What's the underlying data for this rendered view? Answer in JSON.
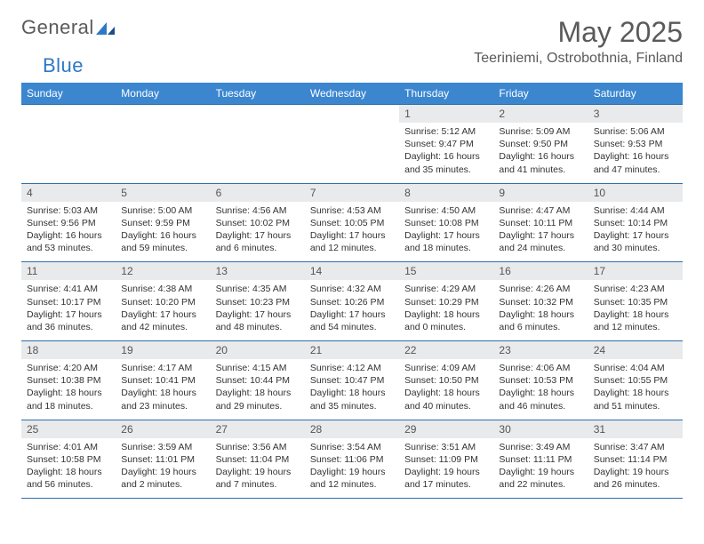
{
  "logo": {
    "part1": "General",
    "part2": "Blue"
  },
  "title": "May 2025",
  "location": "Teeriniemi, Ostrobothnia, Finland",
  "colors": {
    "header_bg": "#3b86cf",
    "header_text": "#ffffff",
    "daynum_bg": "#e9eaeb",
    "rule": "#2f6fab",
    "text": "#333333",
    "logo_gray": "#5a5a5a",
    "logo_blue": "#2f78c4"
  },
  "weekdays": [
    "Sunday",
    "Monday",
    "Tuesday",
    "Wednesday",
    "Thursday",
    "Friday",
    "Saturday"
  ],
  "weeks": [
    [
      {
        "n": "",
        "sr": "",
        "ss": "",
        "dl": ""
      },
      {
        "n": "",
        "sr": "",
        "ss": "",
        "dl": ""
      },
      {
        "n": "",
        "sr": "",
        "ss": "",
        "dl": ""
      },
      {
        "n": "",
        "sr": "",
        "ss": "",
        "dl": ""
      },
      {
        "n": "1",
        "sr": "Sunrise: 5:12 AM",
        "ss": "Sunset: 9:47 PM",
        "dl": "Daylight: 16 hours and 35 minutes."
      },
      {
        "n": "2",
        "sr": "Sunrise: 5:09 AM",
        "ss": "Sunset: 9:50 PM",
        "dl": "Daylight: 16 hours and 41 minutes."
      },
      {
        "n": "3",
        "sr": "Sunrise: 5:06 AM",
        "ss": "Sunset: 9:53 PM",
        "dl": "Daylight: 16 hours and 47 minutes."
      }
    ],
    [
      {
        "n": "4",
        "sr": "Sunrise: 5:03 AM",
        "ss": "Sunset: 9:56 PM",
        "dl": "Daylight: 16 hours and 53 minutes."
      },
      {
        "n": "5",
        "sr": "Sunrise: 5:00 AM",
        "ss": "Sunset: 9:59 PM",
        "dl": "Daylight: 16 hours and 59 minutes."
      },
      {
        "n": "6",
        "sr": "Sunrise: 4:56 AM",
        "ss": "Sunset: 10:02 PM",
        "dl": "Daylight: 17 hours and 6 minutes."
      },
      {
        "n": "7",
        "sr": "Sunrise: 4:53 AM",
        "ss": "Sunset: 10:05 PM",
        "dl": "Daylight: 17 hours and 12 minutes."
      },
      {
        "n": "8",
        "sr": "Sunrise: 4:50 AM",
        "ss": "Sunset: 10:08 PM",
        "dl": "Daylight: 17 hours and 18 minutes."
      },
      {
        "n": "9",
        "sr": "Sunrise: 4:47 AM",
        "ss": "Sunset: 10:11 PM",
        "dl": "Daylight: 17 hours and 24 minutes."
      },
      {
        "n": "10",
        "sr": "Sunrise: 4:44 AM",
        "ss": "Sunset: 10:14 PM",
        "dl": "Daylight: 17 hours and 30 minutes."
      }
    ],
    [
      {
        "n": "11",
        "sr": "Sunrise: 4:41 AM",
        "ss": "Sunset: 10:17 PM",
        "dl": "Daylight: 17 hours and 36 minutes."
      },
      {
        "n": "12",
        "sr": "Sunrise: 4:38 AM",
        "ss": "Sunset: 10:20 PM",
        "dl": "Daylight: 17 hours and 42 minutes."
      },
      {
        "n": "13",
        "sr": "Sunrise: 4:35 AM",
        "ss": "Sunset: 10:23 PM",
        "dl": "Daylight: 17 hours and 48 minutes."
      },
      {
        "n": "14",
        "sr": "Sunrise: 4:32 AM",
        "ss": "Sunset: 10:26 PM",
        "dl": "Daylight: 17 hours and 54 minutes."
      },
      {
        "n": "15",
        "sr": "Sunrise: 4:29 AM",
        "ss": "Sunset: 10:29 PM",
        "dl": "Daylight: 18 hours and 0 minutes."
      },
      {
        "n": "16",
        "sr": "Sunrise: 4:26 AM",
        "ss": "Sunset: 10:32 PM",
        "dl": "Daylight: 18 hours and 6 minutes."
      },
      {
        "n": "17",
        "sr": "Sunrise: 4:23 AM",
        "ss": "Sunset: 10:35 PM",
        "dl": "Daylight: 18 hours and 12 minutes."
      }
    ],
    [
      {
        "n": "18",
        "sr": "Sunrise: 4:20 AM",
        "ss": "Sunset: 10:38 PM",
        "dl": "Daylight: 18 hours and 18 minutes."
      },
      {
        "n": "19",
        "sr": "Sunrise: 4:17 AM",
        "ss": "Sunset: 10:41 PM",
        "dl": "Daylight: 18 hours and 23 minutes."
      },
      {
        "n": "20",
        "sr": "Sunrise: 4:15 AM",
        "ss": "Sunset: 10:44 PM",
        "dl": "Daylight: 18 hours and 29 minutes."
      },
      {
        "n": "21",
        "sr": "Sunrise: 4:12 AM",
        "ss": "Sunset: 10:47 PM",
        "dl": "Daylight: 18 hours and 35 minutes."
      },
      {
        "n": "22",
        "sr": "Sunrise: 4:09 AM",
        "ss": "Sunset: 10:50 PM",
        "dl": "Daylight: 18 hours and 40 minutes."
      },
      {
        "n": "23",
        "sr": "Sunrise: 4:06 AM",
        "ss": "Sunset: 10:53 PM",
        "dl": "Daylight: 18 hours and 46 minutes."
      },
      {
        "n": "24",
        "sr": "Sunrise: 4:04 AM",
        "ss": "Sunset: 10:55 PM",
        "dl": "Daylight: 18 hours and 51 minutes."
      }
    ],
    [
      {
        "n": "25",
        "sr": "Sunrise: 4:01 AM",
        "ss": "Sunset: 10:58 PM",
        "dl": "Daylight: 18 hours and 56 minutes."
      },
      {
        "n": "26",
        "sr": "Sunrise: 3:59 AM",
        "ss": "Sunset: 11:01 PM",
        "dl": "Daylight: 19 hours and 2 minutes."
      },
      {
        "n": "27",
        "sr": "Sunrise: 3:56 AM",
        "ss": "Sunset: 11:04 PM",
        "dl": "Daylight: 19 hours and 7 minutes."
      },
      {
        "n": "28",
        "sr": "Sunrise: 3:54 AM",
        "ss": "Sunset: 11:06 PM",
        "dl": "Daylight: 19 hours and 12 minutes."
      },
      {
        "n": "29",
        "sr": "Sunrise: 3:51 AM",
        "ss": "Sunset: 11:09 PM",
        "dl": "Daylight: 19 hours and 17 minutes."
      },
      {
        "n": "30",
        "sr": "Sunrise: 3:49 AM",
        "ss": "Sunset: 11:11 PM",
        "dl": "Daylight: 19 hours and 22 minutes."
      },
      {
        "n": "31",
        "sr": "Sunrise: 3:47 AM",
        "ss": "Sunset: 11:14 PM",
        "dl": "Daylight: 19 hours and 26 minutes."
      }
    ]
  ]
}
